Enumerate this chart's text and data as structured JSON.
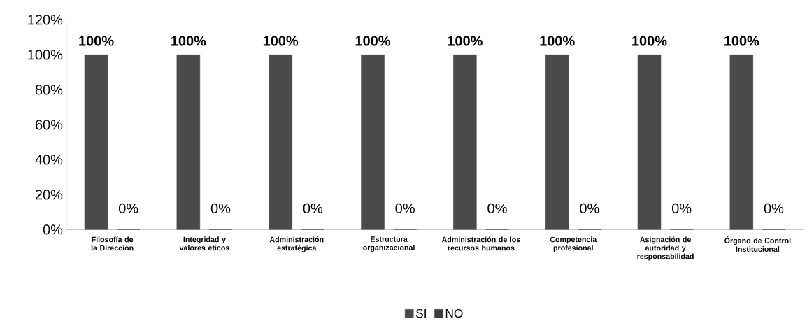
{
  "chart_data": {
    "type": "bar",
    "categories": [
      "Filosofía de la Dirección",
      "Integridad y valores éticos",
      "Administración estratégica",
      "Estructura organizacional",
      "Administración de los recursos humanos",
      "Competencia profesional",
      "Asignación de autoridad y responsabilidad",
      "Órgano de Control Institucional"
    ],
    "series": [
      {
        "name": "SI",
        "color": "#4a4a4a",
        "values": [
          100,
          100,
          100,
          100,
          100,
          100,
          100,
          100
        ],
        "value_labels": [
          "100%",
          "100%",
          "100%",
          "100%",
          "100%",
          "100%",
          "100%",
          "100%"
        ]
      },
      {
        "name": "NO",
        "color": "#3c3c3c",
        "values": [
          0,
          0,
          0,
          0,
          0,
          0,
          0,
          0
        ],
        "value_labels": [
          "0%",
          "0%",
          "0%",
          "0%",
          "0%",
          "0%",
          "0%",
          "0%"
        ]
      }
    ],
    "ylim": [
      0,
      120
    ],
    "yticks": [
      {
        "value": 0,
        "label": "0%"
      },
      {
        "value": 20,
        "label": "20%"
      },
      {
        "value": 40,
        "label": "40%"
      },
      {
        "value": 60,
        "label": "60%"
      },
      {
        "value": 80,
        "label": "80%"
      },
      {
        "value": 100,
        "label": "100%"
      },
      {
        "value": 120,
        "label": "120%"
      }
    ],
    "grid": false,
    "legend": "bottom"
  }
}
